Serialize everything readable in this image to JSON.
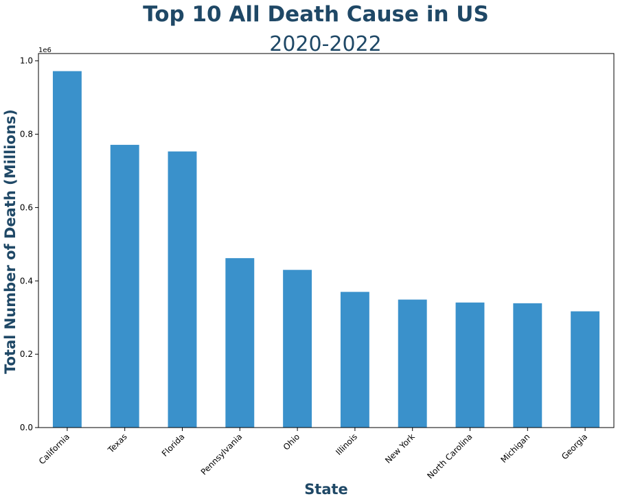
{
  "chart_data": {
    "type": "bar",
    "title": "Top 10 All Death Cause in US",
    "subtitle": "2020-2022",
    "xlabel": "State",
    "ylabel": "Total Number of Death (Millions)",
    "y_offset_label": "1e6",
    "categories": [
      "California",
      "Texas",
      "Florida",
      "Pennsylvania",
      "Ohio",
      "Illinois",
      "New York",
      "North Carolina",
      "Michigan",
      "Georgia"
    ],
    "values": [
      972000,
      771000,
      753000,
      462000,
      430000,
      370000,
      349000,
      341000,
      339000,
      317000
    ],
    "ylim": [
      0,
      1020000
    ],
    "yticks": [
      0,
      200000,
      400000,
      600000,
      800000,
      1000000
    ],
    "ytick_labels": [
      "0.0",
      "0.2",
      "0.4",
      "0.6",
      "0.8",
      "1.0"
    ],
    "bar_color": "#3a91cb",
    "text_color": "#1f4866",
    "grid": false
  }
}
